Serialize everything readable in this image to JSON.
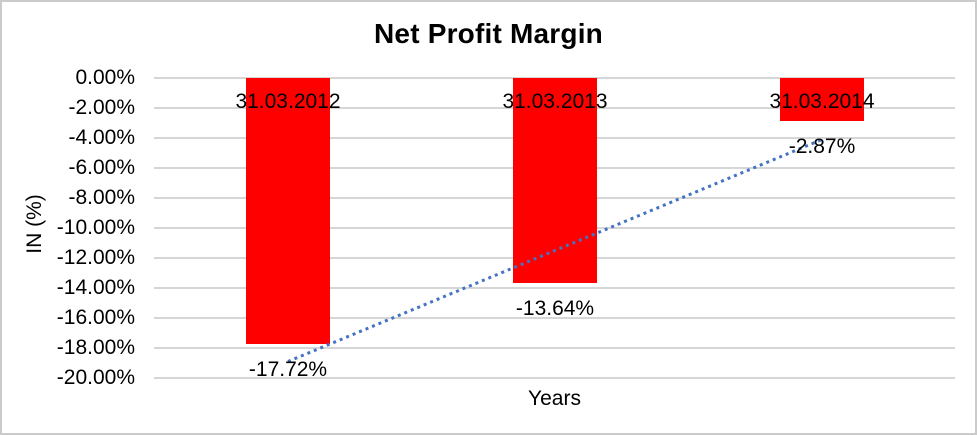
{
  "chart_data": {
    "type": "bar",
    "title": "Net Profit Margin",
    "xlabel": "Years",
    "ylabel": "IN (%)",
    "categories": [
      "31.03.2012",
      "31.03.2013",
      "31.03.2014"
    ],
    "values": [
      -17.72,
      -13.64,
      -2.87
    ],
    "data_labels": [
      "-17.72%",
      "-13.64%",
      "-2.87%"
    ],
    "y_tick_labels": [
      "0.00%",
      "-2.00%",
      "-4.00%",
      "-6.00%",
      "-8.00%",
      "-10.00%",
      "-12.00%",
      "-14.00%",
      "-16.00%",
      "-18.00%",
      "-20.00%"
    ],
    "y_tick_values": [
      0,
      -2,
      -4,
      -6,
      -8,
      -10,
      -12,
      -14,
      -16,
      -18,
      -20
    ],
    "ylim": [
      0,
      -20
    ],
    "grid": true,
    "legend": "none",
    "trendline": {
      "type": "linear",
      "style": "dotted",
      "start_value": -18.9,
      "end_value": -4.1
    },
    "colors": {
      "bar": "#ff0000",
      "trendline": "#4472c4",
      "gridline": "#d6d6d6",
      "text": "#000000",
      "background": "#ffffff",
      "border": "#cbcbcb"
    }
  }
}
